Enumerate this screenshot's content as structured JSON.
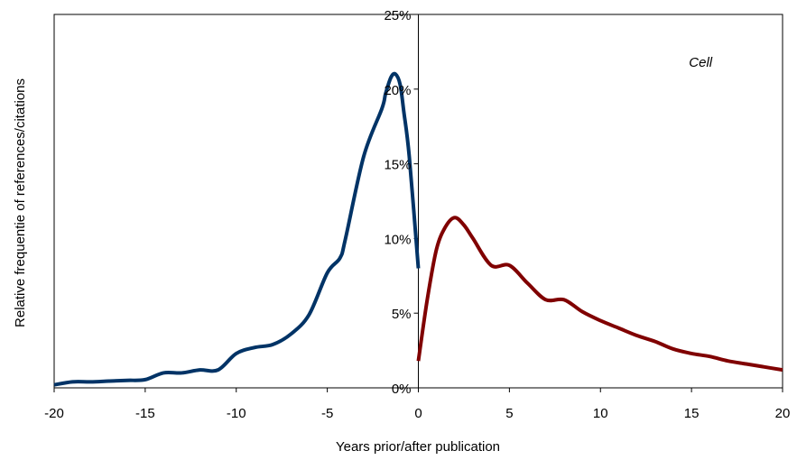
{
  "chart_data": {
    "type": "line",
    "title": "",
    "xlabel": "Years prior/after publication",
    "ylabel": "Relative frequentie of references/citations",
    "xlim": [
      -20,
      20
    ],
    "ylim": [
      0,
      25
    ],
    "xticks": [
      -20,
      -15,
      -10,
      -5,
      0,
      5,
      10,
      15,
      20
    ],
    "xtick_labels": [
      "-20",
      "-15",
      "-10",
      "-5",
      "0",
      "5",
      "10",
      "15",
      "20"
    ],
    "yticks": [
      0,
      5,
      10,
      15,
      20,
      25
    ],
    "ytick_labels": [
      "0%",
      "5%",
      "10%",
      "15%",
      "20%",
      "25%"
    ],
    "y_unit": "%",
    "grid": false,
    "legend": "none",
    "annotations": [
      {
        "text": "Cell",
        "x": 15.5,
        "y": 21.5
      }
    ],
    "series": [
      {
        "color": "#003366",
        "x": [
          -20,
          -19,
          -18,
          -17,
          -16,
          -15,
          -14,
          -13,
          -12,
          -11,
          -10,
          -9,
          -8,
          -7,
          -6,
          -5,
          -4.3,
          -4,
          -3,
          -2,
          -1.8,
          -1.5,
          -1.25,
          -1,
          -0.8,
          -0.5,
          0
        ],
        "y": [
          0.2,
          0.4,
          0.4,
          0.45,
          0.5,
          0.55,
          1.0,
          1.0,
          1.2,
          1.2,
          2.3,
          2.7,
          2.9,
          3.6,
          4.9,
          7.7,
          8.7,
          10.0,
          15.5,
          18.7,
          19.7,
          20.8,
          21.0,
          20.3,
          18.5,
          15.5,
          8.0
        ]
      },
      {
        "color": "#800000",
        "x": [
          0,
          0.5,
          1,
          1.5,
          2,
          2.5,
          3,
          4,
          5,
          6,
          7,
          8,
          9,
          10,
          11,
          12,
          13,
          14,
          15,
          16,
          17,
          18,
          19,
          20
        ],
        "y": [
          1.8,
          6.0,
          9.3,
          10.8,
          11.4,
          10.9,
          10.0,
          8.2,
          8.2,
          7.0,
          5.9,
          5.9,
          5.1,
          4.5,
          4.0,
          3.5,
          3.1,
          2.6,
          2.3,
          2.1,
          1.8,
          1.6,
          1.4,
          1.2
        ]
      }
    ]
  }
}
